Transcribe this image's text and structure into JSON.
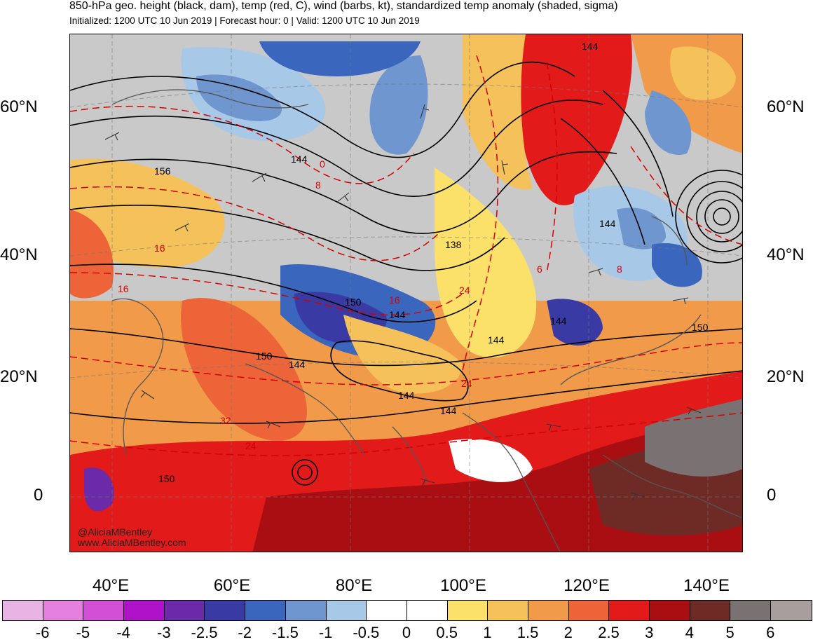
{
  "header": {
    "title": "850-hPa geo. height (black, dam), temp (red, C), wind (barbs, kt), standardized temp anomaly (shaded, sigma)",
    "subtitle": "Initialized: 1200 UTC 10 Jun 2019 | Forecast hour: 0 | Valid: 1200 UTC 10 Jun 2019"
  },
  "axes": {
    "lat_labels": [
      "60°N",
      "40°N",
      "20°N",
      "0"
    ],
    "lon_labels": [
      "40°E",
      "60°E",
      "80°E",
      "100°E",
      "120°E",
      "140°E"
    ]
  },
  "map": {
    "height_labels": [
      "144",
      "156",
      "144",
      "138",
      "144",
      "150",
      "144",
      "150",
      "144",
      "144",
      "144",
      "150",
      "144",
      "144",
      "150"
    ],
    "temp_labels": [
      "0",
      "8",
      "16",
      "16",
      "24",
      "24",
      "16",
      "8",
      "6",
      "32",
      "24"
    ],
    "credit": [
      "@AliciaMBentley",
      "www.AliciaMBentley.com"
    ]
  },
  "colorbar": {
    "tick_labels": [
      "-6",
      "-5",
      "-4",
      "-3",
      "-2.5",
      "-2",
      "-1.5",
      "-1",
      "-0.5",
      "0",
      "0.5",
      "1",
      "1.5",
      "2",
      "2.5",
      "3",
      "4",
      "5",
      "6"
    ],
    "colors": [
      "#e9b4e3",
      "#e57fe0",
      "#d34fd6",
      "#b012c9",
      "#6b2aa8",
      "#3a3aa4",
      "#3a66bd",
      "#6f96cf",
      "#a8c8e8",
      "#ffffff",
      "#ffffff",
      "#fbe16a",
      "#f4c15a",
      "#f09a4a",
      "#ec6438",
      "#e21a1a",
      "#a90f12",
      "#6e2a25",
      "#7a7272",
      "#a89e9e"
    ]
  }
}
